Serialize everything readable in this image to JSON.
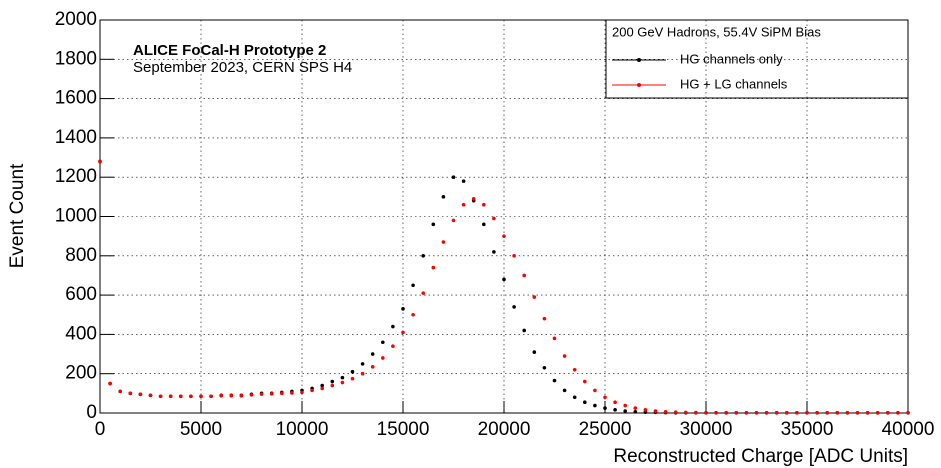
{
  "chart_data": {
    "type": "scatter",
    "x_label": "Reconstructed Charge [ADC Units]",
    "y_label": "Event Count",
    "annotations": [
      "ALICE FoCal-H Prototype 2",
      "September 2023, CERN SPS H4"
    ],
    "legend_title": "200 GeV Hadrons, 55.4V SiPM Bias",
    "legend_position": "upper right",
    "grid": true,
    "xlim": [
      0,
      40000
    ],
    "ylim": [
      0,
      2000
    ],
    "xticks": [
      0,
      5000,
      10000,
      15000,
      20000,
      25000,
      30000,
      35000,
      40000
    ],
    "yticks": [
      0,
      200,
      400,
      600,
      800,
      1000,
      1200,
      1400,
      1600,
      1800,
      2000
    ],
    "x": [
      0,
      500,
      1000,
      1500,
      2000,
      2500,
      3000,
      3500,
      4000,
      4500,
      5000,
      5500,
      6000,
      6500,
      7000,
      7500,
      8000,
      8500,
      9000,
      9500,
      10000,
      10500,
      11000,
      11500,
      12000,
      12500,
      13000,
      13500,
      14000,
      14500,
      15000,
      15500,
      16000,
      16500,
      17000,
      17500,
      18000,
      18500,
      19000,
      19500,
      20000,
      20500,
      21000,
      21500,
      22000,
      22500,
      23000,
      23500,
      24000,
      24500,
      25000,
      25500,
      26000,
      26500,
      27000,
      27500,
      28000,
      28500,
      29000,
      29500,
      30000,
      30500,
      31000,
      31500,
      32000,
      32500,
      33000,
      33500,
      34000,
      34500,
      35000,
      35500,
      36000,
      36500,
      37000,
      37500,
      38000,
      38500,
      39000,
      39500,
      40000
    ],
    "series": [
      {
        "name": "HG channels only",
        "color": "#000000",
        "values": [
          1280,
          150,
          110,
          100,
          95,
          90,
          85,
          85,
          85,
          85,
          85,
          85,
          90,
          90,
          90,
          95,
          100,
          100,
          105,
          110,
          115,
          125,
          140,
          160,
          180,
          210,
          250,
          300,
          360,
          440,
          530,
          650,
          800,
          960,
          1100,
          1200,
          1180,
          1080,
          960,
          820,
          680,
          540,
          420,
          310,
          230,
          165,
          115,
          80,
          55,
          38,
          25,
          16,
          10,
          6,
          4,
          3,
          2,
          1,
          1,
          1,
          1,
          1,
          1,
          1,
          1,
          1,
          1,
          1,
          1,
          1,
          1,
          1,
          1,
          1,
          1,
          1,
          1,
          1,
          1,
          1,
          1
        ]
      },
      {
        "name": "HG + LG channels",
        "color": "#ff0000",
        "values": [
          1280,
          150,
          110,
          100,
          95,
          90,
          85,
          85,
          85,
          85,
          85,
          85,
          88,
          88,
          88,
          92,
          96,
          98,
          100,
          102,
          105,
          115,
          125,
          140,
          155,
          175,
          200,
          235,
          280,
          340,
          410,
          500,
          610,
          740,
          870,
          980,
          1060,
          1090,
          1060,
          990,
          900,
          800,
          700,
          590,
          480,
          380,
          290,
          220,
          160,
          115,
          80,
          55,
          38,
          25,
          16,
          10,
          6,
          4,
          3,
          2,
          1,
          1,
          1,
          1,
          1,
          1,
          1,
          1,
          1,
          1,
          1,
          1,
          1,
          1,
          1,
          1,
          1,
          1,
          1,
          1,
          1
        ]
      }
    ]
  }
}
